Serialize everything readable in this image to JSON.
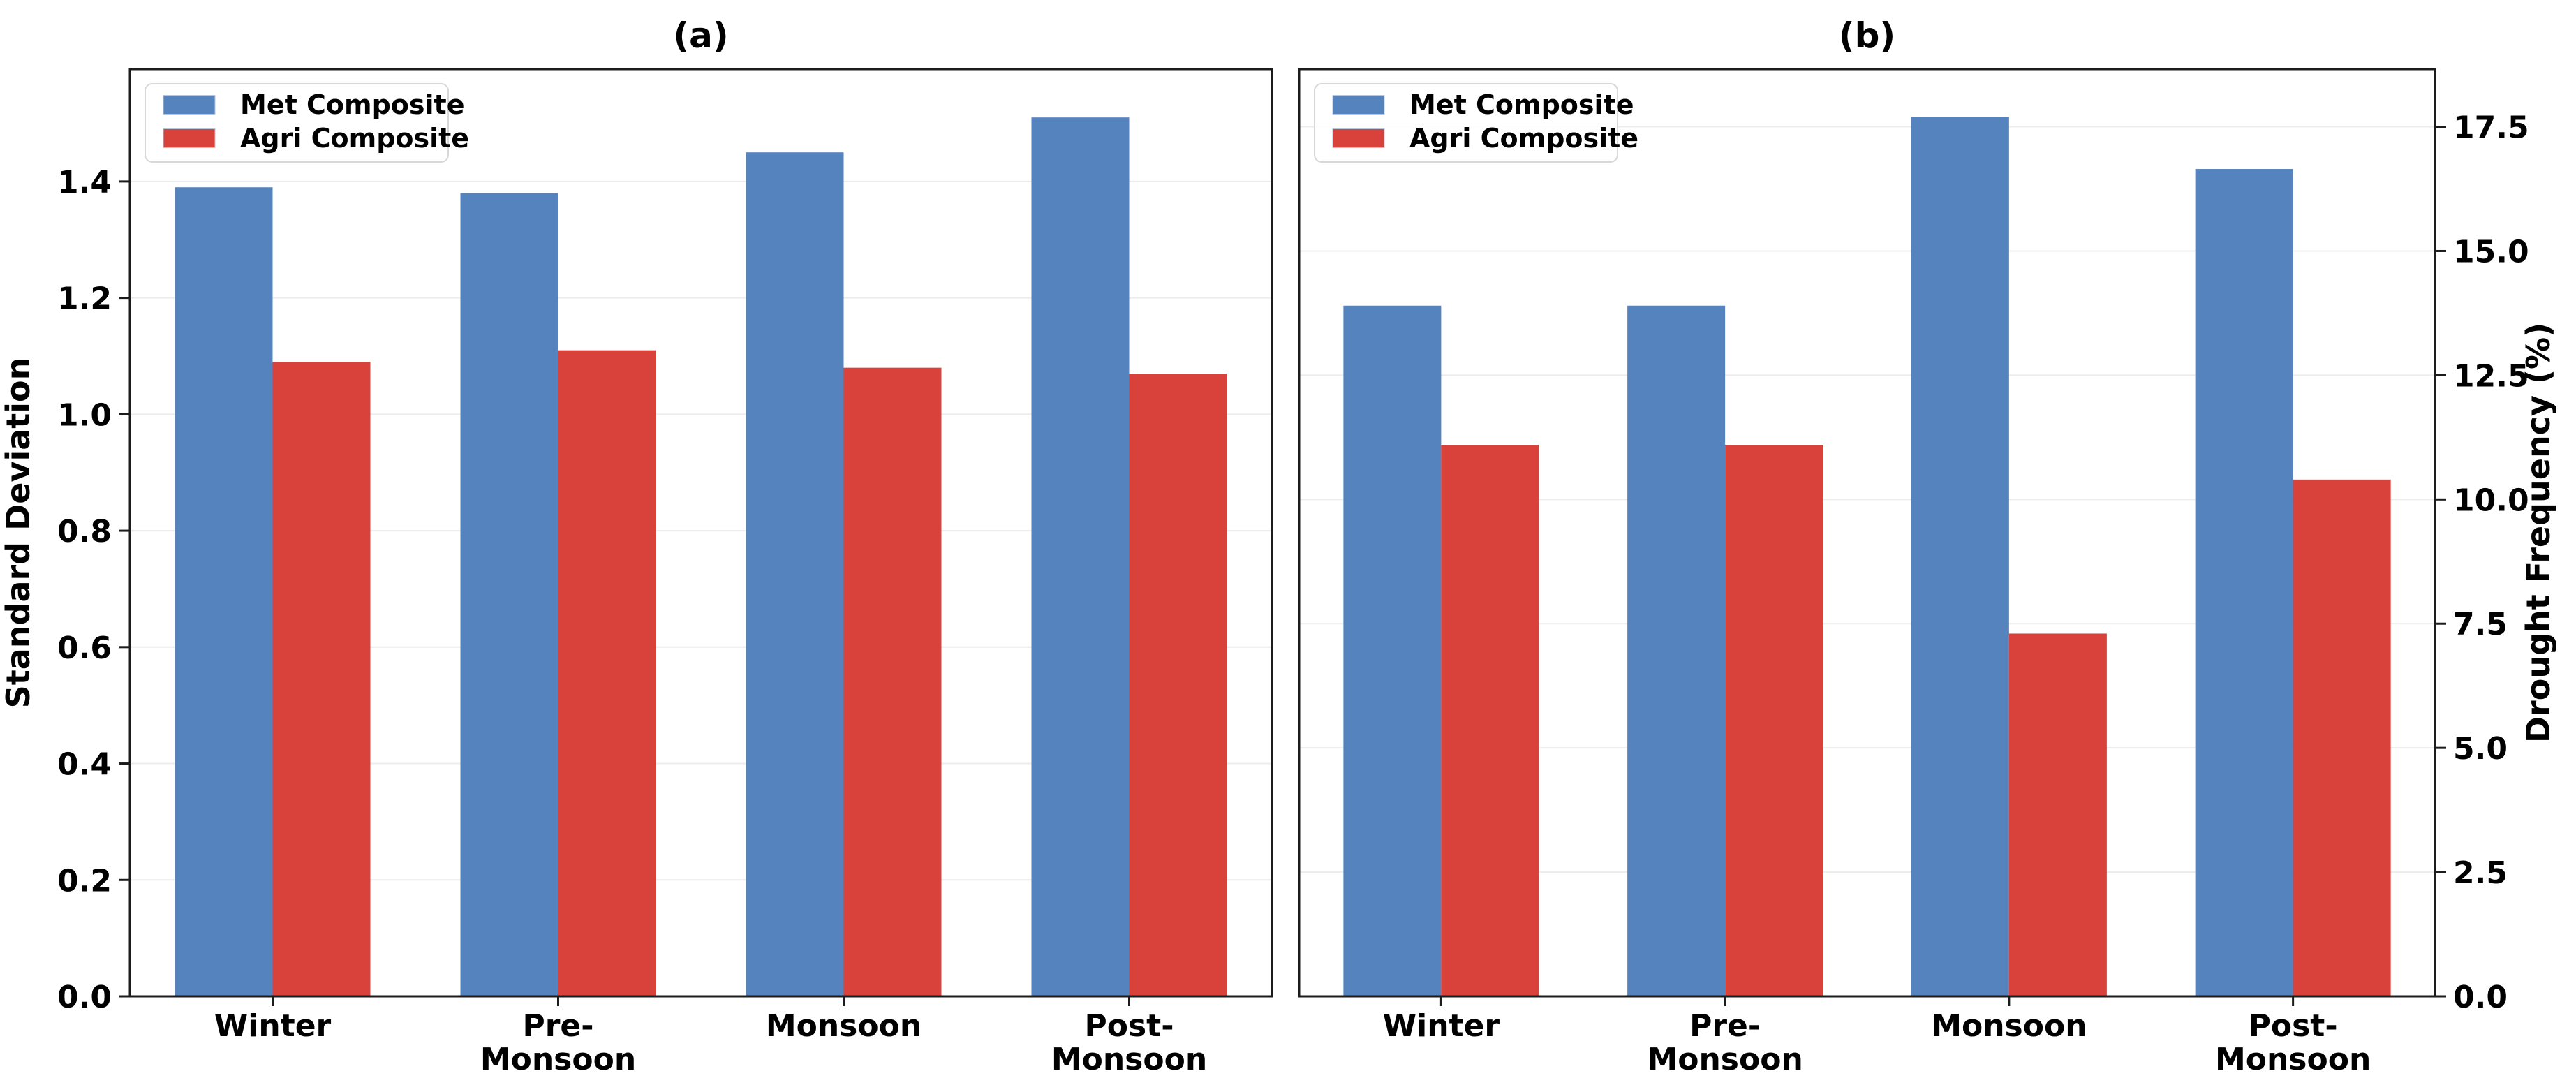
{
  "figure": {
    "background": "#ffffff"
  },
  "legend": {
    "items": [
      {
        "label": "Met Composite",
        "color": "#5583BE"
      },
      {
        "label": "Agri Composite",
        "color": "#D8423B"
      }
    ],
    "position": "upper left"
  },
  "colors": {
    "met_blue": "#5583BE",
    "agri_red": "#D8423B",
    "spine": "#1c1c1c",
    "grid": "#ececec",
    "text": "#000000",
    "legend_border": "#d8d8d8"
  },
  "chart_data": [
    {
      "id": "a",
      "type": "bar",
      "title": "(a)",
      "ylabel": "Standard Deviation",
      "yaxis_side": "left",
      "categories": [
        "Winter",
        "Pre-\nMonsoon",
        "Monsoon",
        "Post-\nMonsoon"
      ],
      "series": [
        {
          "name": "Met Composite",
          "color": "#5583BE",
          "values": [
            1.39,
            1.38,
            1.45,
            1.51
          ]
        },
        {
          "name": "Agri Composite",
          "color": "#D8423B",
          "values": [
            1.09,
            1.11,
            1.08,
            1.07
          ]
        }
      ],
      "ylim": [
        0,
        1.593
      ],
      "yticks": [
        0.0,
        0.2,
        0.4,
        0.6,
        0.8,
        1.0,
        1.2,
        1.4
      ],
      "ytick_decimals": 1,
      "grid": true,
      "legend_position": "upper left"
    },
    {
      "id": "b",
      "type": "bar",
      "title": "(b)",
      "ylabel": "Drought Frequency (%)",
      "yaxis_side": "right",
      "categories": [
        "Winter",
        "Pre-\nMonsoon",
        "Monsoon",
        "Post-\nMonsoon"
      ],
      "series": [
        {
          "name": "Met Composite",
          "color": "#5583BE",
          "values": [
            13.9,
            13.9,
            17.7,
            16.65
          ]
        },
        {
          "name": "Agri Composite",
          "color": "#D8423B",
          "values": [
            11.1,
            11.1,
            7.3,
            10.4
          ]
        }
      ],
      "ylim": [
        0,
        18.66
      ],
      "yticks": [
        0.0,
        2.5,
        5.0,
        7.5,
        10.0,
        12.5,
        15.0,
        17.5
      ],
      "ytick_decimals": 1,
      "grid": true,
      "legend_position": "upper left"
    }
  ]
}
